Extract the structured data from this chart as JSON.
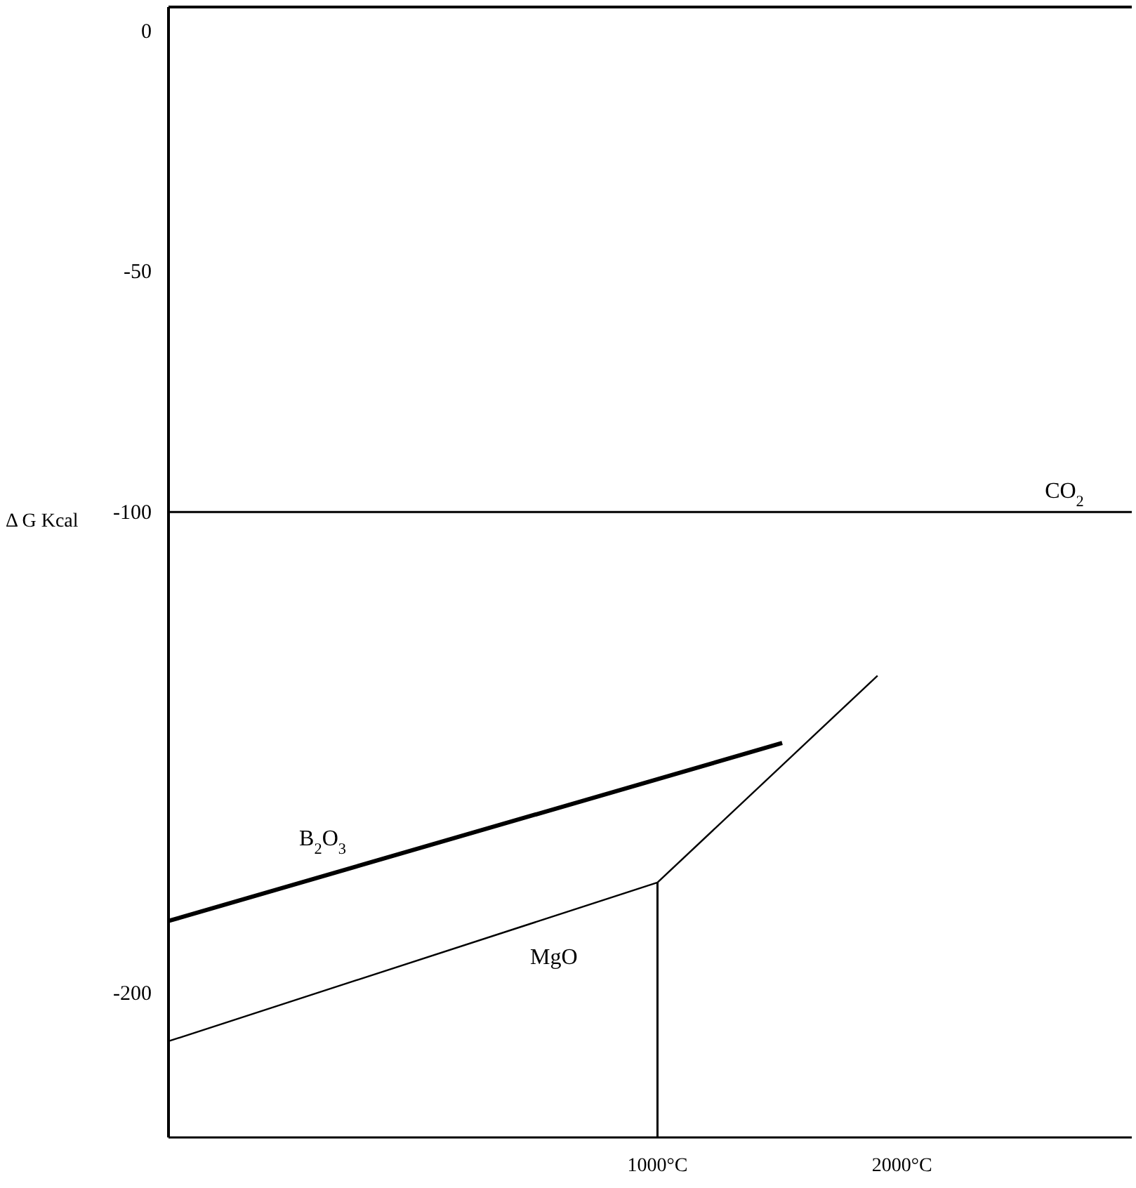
{
  "chart_data": {
    "type": "line",
    "ylabel": "Δ G Kcal",
    "line_style": "solid",
    "marker": "none",
    "grid": false,
    "legend": false,
    "xlim": [
      -1000,
      2940
    ],
    "xticks": [
      {
        "value": 1000,
        "label": "1000°C"
      },
      {
        "value": 2000,
        "label": "2000°C"
      }
    ],
    "ylim": [
      -230,
      5
    ],
    "yticks": [
      0,
      -50,
      -100,
      -200
    ],
    "series": [
      {
        "name": "CO$_{2}$",
        "color": "#000000",
        "x": [
          -1000,
          2940
        ],
        "values": [
          -100,
          -100
        ]
      },
      {
        "name": "B$_{2}$O$_{3}$",
        "color": "#000000",
        "x": [
          -1000,
          1510
        ],
        "values": [
          -185,
          -148
        ]
      },
      {
        "name": "MgO",
        "color": "#000000",
        "x": [
          -1000,
          1000,
          1900
        ],
        "values": [
          -210,
          -177,
          -134
        ]
      },
      {
        "color": "#000000",
        "x": [
          1000,
          1000
        ],
        "values": [
          -230,
          -177
        ]
      }
    ]
  }
}
